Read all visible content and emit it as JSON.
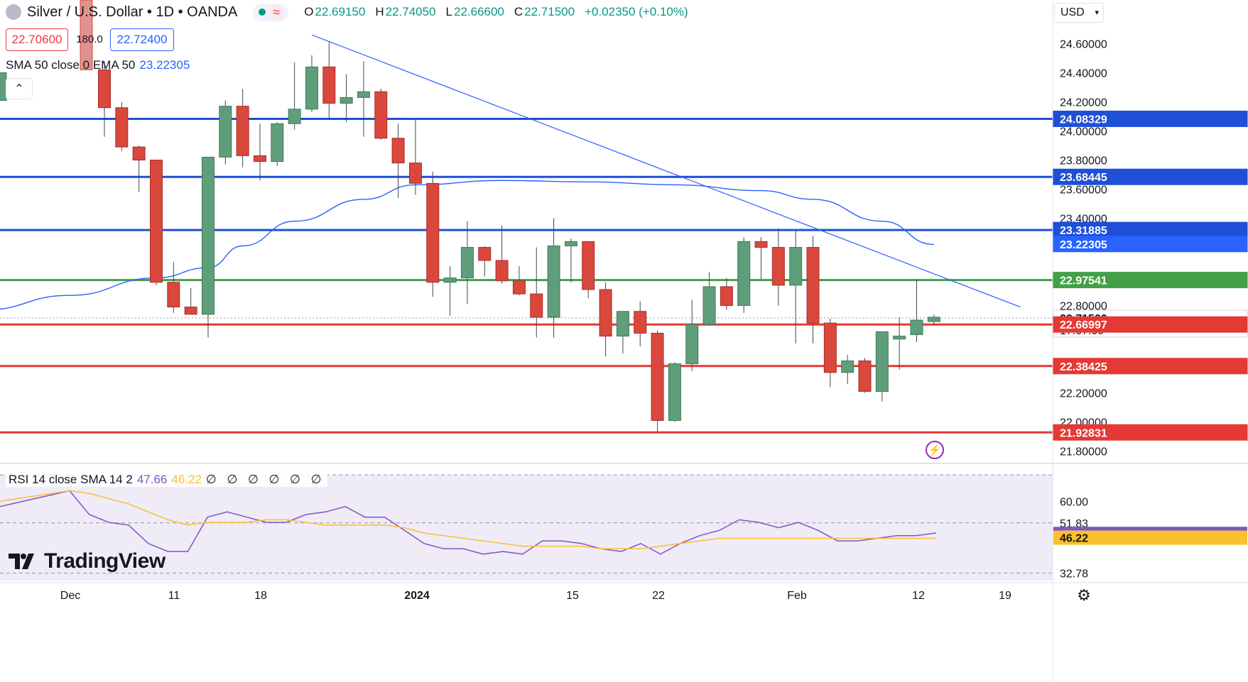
{
  "header": {
    "title": "Silver / U.S. Dollar • 1D • OANDA",
    "o_label": "O",
    "o_value": "22.69150",
    "h_label": "H",
    "h_value": "22.74050",
    "l_label": "L",
    "l_value": "22.66600",
    "c_label": "C",
    "c_value": "22.71500",
    "change": "+0.02350 (+0.10%)",
    "status_icon": "green-dot-icon",
    "wave_icon": "≈"
  },
  "trade": {
    "sell_price": "22.70600",
    "spread": "180.0",
    "buy_price": "22.72400"
  },
  "sma_legend": {
    "label": "SMA 50 close 0 EMA 50",
    "value": "23.22305"
  },
  "rsi_legend": {
    "label": "RSI 14 close SMA 14 2",
    "rsi_value": "47.66",
    "sma_value": "46.22",
    "zeros": "∅ ∅ ∅ ∅ ∅ ∅"
  },
  "currency": "USD",
  "brand": "TradingView",
  "colors": {
    "up": "#5f9e7a",
    "down": "#d9473d",
    "ma": "#2962ff",
    "resistance": "#1e4fd6",
    "support": "#e53935",
    "pivot": "#43a047",
    "rsi": "#7e57c2",
    "rsi_sma": "#fbc02d"
  },
  "chart_data": [
    {
      "type": "candlestick",
      "title": "Silver / U.S. Dollar • 1D • OANDA",
      "ylim": [
        21.72,
        24.9
      ],
      "y_ticks": [
        "24.60000",
        "24.40000",
        "24.20000",
        "24.00000",
        "23.80000",
        "23.60000",
        "23.40000",
        "22.80000",
        "22.20000",
        "22.00000",
        "21.80000"
      ],
      "x_ticks": [
        "Dec",
        "11",
        "18",
        "2024",
        "15",
        "22",
        "Feb",
        "12",
        "19"
      ],
      "price_labels": [
        {
          "text": "24.08329",
          "value": 24.08329,
          "kind": "resistance"
        },
        {
          "text": "23.68445",
          "value": 23.68445,
          "kind": "resistance"
        },
        {
          "text": "23.31885",
          "value": 23.31885,
          "kind": "resistance"
        },
        {
          "text": "23.22305",
          "value": 23.22305,
          "kind": "ma"
        },
        {
          "text": "22.97541",
          "value": 22.97541,
          "kind": "pivot"
        },
        {
          "text": "22.71500",
          "value": 22.715,
          "kind": "last",
          "countdown": "17:07:09"
        },
        {
          "text": "22.66997",
          "value": 22.66997,
          "kind": "support"
        },
        {
          "text": "22.38425",
          "value": 22.38425,
          "kind": "support"
        },
        {
          "text": "21.92831",
          "value": 21.92831,
          "kind": "support"
        }
      ],
      "candles": [
        {
          "date": "Dec 6",
          "o": 24.42,
          "h": 24.48,
          "l": 23.96,
          "c": 24.16
        },
        {
          "date": "Dec 7",
          "o": 24.16,
          "h": 24.2,
          "l": 23.86,
          "c": 23.89
        },
        {
          "date": "Dec 8",
          "o": 23.89,
          "h": 23.9,
          "l": 23.58,
          "c": 23.8
        },
        {
          "date": "Dec 11",
          "o": 23.8,
          "h": 23.8,
          "l": 22.94,
          "c": 22.96
        },
        {
          "date": "Dec 12",
          "o": 22.96,
          "h": 23.1,
          "l": 22.75,
          "c": 22.79
        },
        {
          "date": "Dec 13",
          "o": 22.79,
          "h": 22.92,
          "l": 22.74,
          "c": 22.74
        },
        {
          "date": "Dec 14",
          "o": 22.74,
          "h": 23.82,
          "l": 22.58,
          "c": 23.82
        },
        {
          "date": "Dec 15",
          "o": 23.82,
          "h": 24.21,
          "l": 23.77,
          "c": 24.17
        },
        {
          "date": "Dec 18",
          "o": 24.17,
          "h": 24.29,
          "l": 23.75,
          "c": 23.83
        },
        {
          "date": "Dec 19",
          "o": 23.83,
          "h": 24.05,
          "l": 23.66,
          "c": 23.79
        },
        {
          "date": "Dec 20",
          "o": 23.79,
          "h": 24.06,
          "l": 23.76,
          "c": 24.05
        },
        {
          "date": "Dec 21",
          "o": 24.05,
          "h": 24.47,
          "l": 24.01,
          "c": 24.15
        },
        {
          "date": "Dec 22",
          "o": 24.15,
          "h": 24.52,
          "l": 24.13,
          "c": 24.44
        },
        {
          "date": "Dec 26",
          "o": 24.44,
          "h": 24.61,
          "l": 24.09,
          "c": 24.19
        },
        {
          "date": "Dec 27",
          "o": 24.19,
          "h": 24.39,
          "l": 24.06,
          "c": 24.23
        },
        {
          "date": "Dec 28",
          "o": 24.23,
          "h": 24.48,
          "l": 23.96,
          "c": 24.27
        },
        {
          "date": "Dec 29",
          "o": 24.27,
          "h": 24.29,
          "l": 23.94,
          "c": 23.95
        },
        {
          "date": "Jan 2",
          "o": 23.95,
          "h": 24.05,
          "l": 23.54,
          "c": 23.78
        },
        {
          "date": "Jan 3",
          "o": 23.78,
          "h": 24.08,
          "l": 23.56,
          "c": 23.64
        },
        {
          "date": "Jan 4",
          "o": 23.64,
          "h": 23.72,
          "l": 22.86,
          "c": 22.96
        },
        {
          "date": "Jan 5",
          "o": 22.96,
          "h": 23.07,
          "l": 22.73,
          "c": 22.99
        },
        {
          "date": "Jan 8",
          "o": 22.99,
          "h": 23.38,
          "l": 22.81,
          "c": 23.2
        },
        {
          "date": "Jan 9",
          "o": 23.2,
          "h": 23.21,
          "l": 23.0,
          "c": 23.11
        },
        {
          "date": "Jan 10",
          "o": 23.11,
          "h": 23.35,
          "l": 22.95,
          "c": 22.97
        },
        {
          "date": "Jan 11",
          "o": 22.97,
          "h": 23.07,
          "l": 22.87,
          "c": 22.88
        },
        {
          "date": "Jan 12",
          "o": 22.88,
          "h": 23.2,
          "l": 22.58,
          "c": 22.72
        },
        {
          "date": "Jan 15",
          "o": 22.72,
          "h": 23.4,
          "l": 22.58,
          "c": 23.21
        },
        {
          "date": "Jan 16",
          "o": 23.21,
          "h": 23.26,
          "l": 22.96,
          "c": 23.24
        },
        {
          "date": "Jan 17",
          "o": 23.24,
          "h": 23.24,
          "l": 22.85,
          "c": 22.91
        },
        {
          "date": "Jan 18",
          "o": 22.91,
          "h": 22.96,
          "l": 22.45,
          "c": 22.59
        },
        {
          "date": "Jan 19",
          "o": 22.59,
          "h": 22.76,
          "l": 22.47,
          "c": 22.76
        },
        {
          "date": "Jan 22",
          "o": 22.76,
          "h": 22.83,
          "l": 22.52,
          "c": 22.61
        },
        {
          "date": "Jan 23",
          "o": 22.61,
          "h": 22.63,
          "l": 21.93,
          "c": 22.01
        },
        {
          "date": "Jan 24",
          "o": 22.01,
          "h": 22.41,
          "l": 22.0,
          "c": 22.4
        },
        {
          "date": "Jan 25",
          "o": 22.4,
          "h": 22.84,
          "l": 22.35,
          "c": 22.67
        },
        {
          "date": "Jan 26",
          "o": 22.67,
          "h": 23.03,
          "l": 22.66,
          "c": 22.93
        },
        {
          "date": "Jan 29",
          "o": 22.93,
          "h": 22.99,
          "l": 22.77,
          "c": 22.8
        },
        {
          "date": "Jan 30",
          "o": 22.8,
          "h": 23.27,
          "l": 22.75,
          "c": 23.24
        },
        {
          "date": "Jan 31",
          "o": 23.24,
          "h": 23.27,
          "l": 22.98,
          "c": 23.2
        },
        {
          "date": "Feb 1",
          "o": 23.2,
          "h": 23.33,
          "l": 22.8,
          "c": 22.94
        },
        {
          "date": "Feb 2",
          "o": 22.94,
          "h": 23.32,
          "l": 22.54,
          "c": 23.2
        },
        {
          "date": "Feb 5",
          "o": 23.2,
          "h": 23.28,
          "l": 22.54,
          "c": 22.68
        },
        {
          "date": "Feb 6",
          "o": 22.68,
          "h": 22.71,
          "l": 22.24,
          "c": 22.34
        },
        {
          "date": "Feb 7",
          "o": 22.34,
          "h": 22.46,
          "l": 22.26,
          "c": 22.42
        },
        {
          "date": "Feb 8",
          "o": 22.42,
          "h": 22.44,
          "l": 22.2,
          "c": 22.21
        },
        {
          "date": "Feb 9",
          "o": 22.21,
          "h": 22.59,
          "l": 22.14,
          "c": 22.62
        },
        {
          "date": "Feb 12",
          "o": 22.57,
          "h": 22.72,
          "l": 22.36,
          "c": 22.59
        },
        {
          "date": "Feb 13",
          "o": 22.6,
          "h": 22.98,
          "l": 22.55,
          "c": 22.7
        },
        {
          "date": "Feb 14",
          "o": 22.69,
          "h": 22.74,
          "l": 22.67,
          "c": 22.72
        }
      ],
      "ema50": [
        {
          "date": "Nov 27",
          "v": 22.77
        },
        {
          "date": "Dec 4",
          "v": 22.87
        },
        {
          "date": "Dec 11",
          "v": 22.99
        },
        {
          "date": "Dec 14",
          "v": 23.06
        },
        {
          "date": "Dec 18",
          "v": 23.21
        },
        {
          "date": "Dec 21",
          "v": 23.38
        },
        {
          "date": "Dec 28",
          "v": 23.53
        },
        {
          "date": "Jan 3",
          "v": 23.63
        },
        {
          "date": "Jan 10",
          "v": 23.66
        },
        {
          "date": "Jan 17",
          "v": 23.65
        },
        {
          "date": "Jan 24",
          "v": 23.63
        },
        {
          "date": "Jan 31",
          "v": 23.59
        },
        {
          "date": "Feb 5",
          "v": 23.53
        },
        {
          "date": "Feb 9",
          "v": 23.38
        },
        {
          "date": "Feb 14",
          "v": 23.22
        }
      ],
      "trendline": {
        "from": {
          "date": "Dec 22",
          "v": 24.66
        },
        "to": {
          "date": "Feb 21",
          "v": 22.79
        }
      }
    },
    {
      "type": "line",
      "title": "RSI 14 close SMA 14 2",
      "ylim": [
        30,
        73
      ],
      "y_ticks": [
        "60.00"
      ],
      "levels": [
        {
          "text": "51.83",
          "value": 51.83
        },
        {
          "text": "32.78",
          "value": 32.78
        }
      ],
      "value_labels": [
        {
          "text": "47.66",
          "value": 47.66,
          "series": "RSI"
        },
        {
          "text": "46.22",
          "value": 46.22,
          "series": "SMA"
        }
      ],
      "series": [
        {
          "name": "RSI",
          "values": [
            64,
            55,
            52,
            51,
            44,
            41,
            41,
            54,
            56,
            54,
            52,
            52,
            55,
            56,
            58,
            54,
            54,
            49,
            44,
            42,
            42,
            40,
            41,
            40,
            45,
            45,
            44,
            42,
            41,
            44,
            40,
            44,
            47,
            49,
            53,
            52,
            50,
            52,
            49,
            45,
            45,
            46,
            47,
            47,
            48
          ]
        },
        {
          "name": "SMA",
          "values": [
            64,
            63,
            61,
            59,
            56,
            53,
            51,
            52,
            52,
            52,
            53,
            53,
            52,
            51,
            51,
            51,
            51,
            50,
            48,
            47,
            46,
            45,
            44,
            43,
            43,
            43,
            43,
            42,
            42,
            42,
            43,
            44,
            45,
            46,
            46,
            46,
            46,
            46,
            46,
            46,
            46,
            46,
            46,
            46,
            46
          ]
        }
      ]
    }
  ]
}
